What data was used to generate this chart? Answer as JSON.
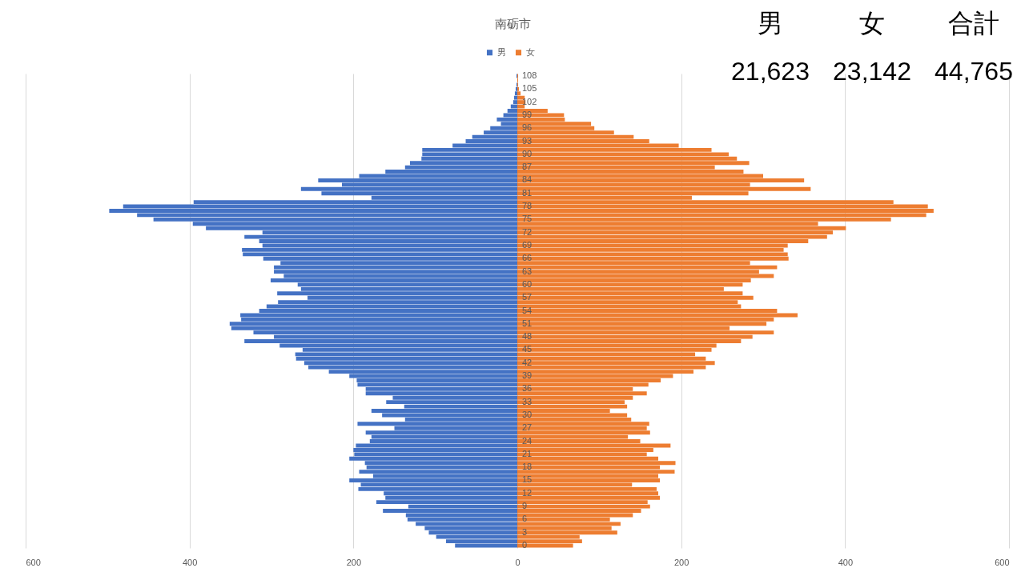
{
  "chart_data": {
    "type": "bar",
    "orientation": "horizontal",
    "title": "南砺市",
    "categories": [
      "108",
      null,
      null,
      "105",
      null,
      null,
      "102",
      null,
      null,
      "99",
      null,
      null,
      "96",
      null,
      null,
      "93",
      null,
      null,
      "90",
      null,
      null,
      "87",
      null,
      null,
      "84",
      null,
      null,
      "81",
      null,
      null,
      "78",
      null,
      null,
      "75",
      null,
      null,
      "72",
      null,
      null,
      "69",
      null,
      null,
      "66",
      null,
      null,
      "63",
      null,
      null,
      "60",
      null,
      null,
      "57",
      null,
      null,
      "54",
      null,
      null,
      "51",
      null,
      null,
      "48",
      null,
      null,
      "45",
      null,
      null,
      "42",
      null,
      null,
      "39",
      null,
      null,
      "36",
      null,
      null,
      "33",
      null,
      null,
      "30",
      null,
      null,
      "27",
      null,
      null,
      "24",
      null,
      null,
      "21",
      null,
      null,
      "18",
      null,
      null,
      "15",
      null,
      null,
      "12",
      null,
      null,
      "9",
      null,
      null,
      "6",
      null,
      null,
      "3",
      null,
      null,
      "0"
    ],
    "series": [
      {
        "name": "男",
        "color": "#4472c4",
        "values": [
          -1,
          0,
          -1,
          -2,
          -3,
          -4,
          -5,
          -8,
          -12,
          -17,
          -25,
          -20,
          -33,
          -41,
          -55,
          -63,
          -79,
          -116,
          -116,
          -117,
          -131,
          -137,
          -161,
          -193,
          -243,
          -214,
          -264,
          -239,
          -178,
          -395,
          -481,
          -498,
          -464,
          -444,
          -396,
          -380,
          -311,
          -333,
          -315,
          -311,
          -336,
          -335,
          -310,
          -289,
          -297,
          -297,
          -285,
          -301,
          -268,
          -264,
          -293,
          -256,
          -292,
          -306,
          -315,
          -338,
          -337,
          -351,
          -349,
          -322,
          -297,
          -333,
          -290,
          -262,
          -271,
          -270,
          -260,
          -255,
          -230,
          -205,
          -196,
          -195,
          -185,
          -185,
          -152,
          -160,
          -138,
          -178,
          -165,
          -137,
          -195,
          -150,
          -185,
          -178,
          -180,
          -197,
          -200,
          -199,
          -205,
          -186,
          -184,
          -193,
          -176,
          -205,
          -191,
          -194,
          -163,
          -161,
          -172,
          -133,
          -164,
          -136,
          -134,
          -124,
          -113,
          -108,
          -99,
          -87,
          -76
        ]
      },
      {
        "name": "女",
        "color": "#ed7d31",
        "values": [
          1,
          1,
          1,
          2,
          4,
          9,
          10,
          9,
          37,
          57,
          58,
          90,
          94,
          118,
          142,
          161,
          197,
          237,
          258,
          268,
          283,
          241,
          276,
          300,
          350,
          284,
          358,
          282,
          213,
          459,
          501,
          508,
          499,
          456,
          367,
          401,
          385,
          378,
          355,
          330,
          325,
          330,
          331,
          284,
          317,
          295,
          313,
          285,
          275,
          252,
          275,
          288,
          269,
          273,
          317,
          342,
          313,
          304,
          259,
          313,
          287,
          273,
          243,
          237,
          217,
          230,
          241,
          230,
          215,
          190,
          175,
          160,
          141,
          158,
          141,
          131,
          134,
          113,
          134,
          139,
          161,
          158,
          162,
          135,
          150,
          187,
          166,
          158,
          172,
          193,
          174,
          192,
          172,
          174,
          140,
          170,
          172,
          174,
          159,
          162,
          151,
          141,
          113,
          126,
          115,
          122,
          76,
          79,
          68
        ]
      }
    ],
    "xlim": [
      -600,
      600
    ],
    "xticks": [
      {
        "value": -600,
        "label": "600"
      },
      {
        "value": -400,
        "label": "400"
      },
      {
        "value": -200,
        "label": "200"
      },
      0,
      200,
      400,
      600
    ],
    "grid": "x",
    "legend": "top",
    "stacked": true,
    "annotations": [
      "男",
      "女",
      "合計",
      "21,623",
      "23,142",
      "44,765"
    ]
  }
}
